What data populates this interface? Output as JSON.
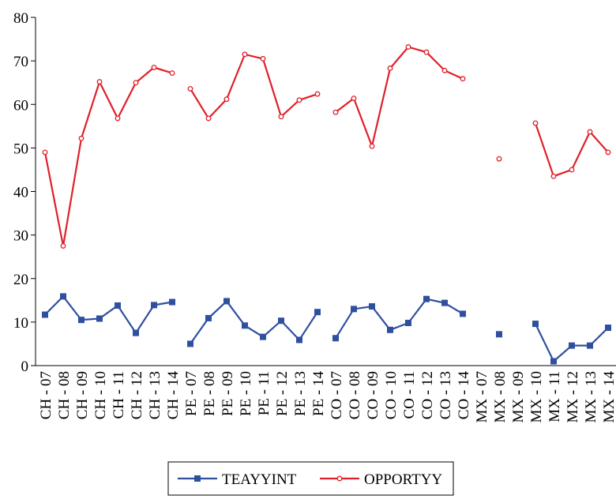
{
  "chart_data": {
    "type": "line",
    "categories": [
      "CH - 07",
      "CH - 08",
      "CH - 09",
      "CH - 10",
      "CH - 11",
      "CH - 12",
      "CH - 13",
      "CH - 14",
      "PE - 07",
      "PE - 08",
      "PE - 09",
      "PE - 10",
      "PE - 11",
      "PE - 12",
      "PE - 13",
      "PE - 14",
      "CO - 07",
      "CO - 08",
      "CO - 09",
      "CO - 10",
      "CO - 11",
      "CO - 12",
      "CO - 13",
      "CO - 14",
      "MX - 07",
      "MX - 08",
      "MX - 09",
      "MX - 10",
      "MX - 11",
      "MX - 12",
      "MX - 13",
      "MX - 14"
    ],
    "series": [
      {
        "name": "TEAYYINT",
        "color": "#2f4f9f",
        "marker": "square",
        "values": [
          11.7,
          15.9,
          10.5,
          10.8,
          13.8,
          7.5,
          13.9,
          14.6,
          5,
          10.9,
          14.8,
          9.2,
          6.6,
          10.3,
          5.9,
          12.3,
          6.3,
          13,
          13.6,
          8.2,
          9.8,
          15.3,
          14.4,
          11.9,
          null,
          7.2,
          null,
          9.6,
          1,
          4.6,
          4.6,
          8.7
        ]
      },
      {
        "name": "OPPORTYY",
        "color": "#e0202a",
        "marker": "circle",
        "values": [
          49,
          27.5,
          52.2,
          65.2,
          56.8,
          65,
          68.5,
          67.2,
          63.6,
          56.8,
          61.2,
          71.5,
          70.5,
          57.2,
          61,
          62.4,
          58.2,
          61.4,
          50.4,
          68.3,
          73.2,
          72,
          67.8,
          65.9,
          null,
          47.5,
          null,
          55.7,
          43.5,
          45,
          53.7,
          49
        ]
      }
    ],
    "ylim": [
      0,
      80
    ],
    "yticks": [
      0,
      10,
      20,
      30,
      40,
      50,
      60,
      70,
      80
    ],
    "grid": false,
    "legend": "bottom"
  }
}
